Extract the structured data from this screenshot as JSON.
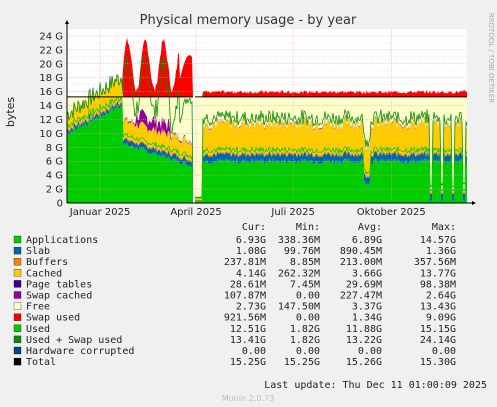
{
  "chart_data": {
    "type": "area",
    "title": "Physical memory usage - by year",
    "ylabel": "bytes",
    "ylim": [
      0,
      25
    ],
    "y_unit": "G",
    "y_ticks": [
      "0",
      "2 G",
      "4 G",
      "6 G",
      "8 G",
      "10 G",
      "12 G",
      "14 G",
      "16 G",
      "18 G",
      "20 G",
      "22 G",
      "24 G"
    ],
    "x_ticks": [
      "Januar 2025",
      "April 2025",
      "Juli 2025",
      "Oktober 2025"
    ],
    "x_range": [
      "2024-12-01",
      "2025-12-11"
    ],
    "x_tick_dates": [
      "2025-01-01",
      "2025-04-01",
      "2025-07-01",
      "2025-10-01"
    ],
    "grid": true,
    "side_text": "RRDTOOL / TOBI OETIKER",
    "footer": "Munin 2.0.73",
    "last_update": "Last update: Thu Dec 11 01:00:09 2025",
    "legend_headers": [
      "Cur:",
      "Min:",
      "Avg:",
      "Max:"
    ],
    "colors": {
      "Applications": "#00cc00",
      "Slab": "#0066b3",
      "Buttons": "#ff8000",
      "Cached": "#ffcc00",
      "Page tables": "#330099",
      "Swap cached": "#990099",
      "Free": "#ffffcc",
      "Swap used": "#ff0000",
      "Used": "#00cc00",
      "Used + Swap used": "#008f00",
      "Hardware corrupted": "#00487d",
      "Total": "#000000"
    },
    "legend": [
      {
        "name": "Applications",
        "cur": "6.93G",
        "min": "338.36M",
        "avg": "6.89G",
        "max": "14.57G",
        "color": "#00cc00"
      },
      {
        "name": "Slab",
        "cur": "1.08G",
        "min": "99.76M",
        "avg": "890.45M",
        "max": "1.36G",
        "color": "#0066b3"
      },
      {
        "name": "Buffers",
        "cur": "237.81M",
        "min": "8.85M",
        "avg": "213.00M",
        "max": "357.56M",
        "color": "#ff8000"
      },
      {
        "name": "Cached",
        "cur": "4.14G",
        "min": "262.32M",
        "avg": "3.66G",
        "max": "13.77G",
        "color": "#ffcc00"
      },
      {
        "name": "Page tables",
        "cur": "28.61M",
        "min": "7.45M",
        "avg": "29.69M",
        "max": "98.38M",
        "color": "#330099"
      },
      {
        "name": "Swap cached",
        "cur": "107.87M",
        "min": "0.00",
        "avg": "227.47M",
        "max": "2.64G",
        "color": "#990099"
      },
      {
        "name": "Free",
        "cur": "2.73G",
        "min": "147.50M",
        "avg": "3.37G",
        "max": "13.43G",
        "color": "#ffffcc"
      },
      {
        "name": "Swap used",
        "cur": "921.56M",
        "min": "0.00",
        "avg": "1.34G",
        "max": "9.09G",
        "color": "#ff0000"
      },
      {
        "name": "Used",
        "cur": "12.51G",
        "min": "1.82G",
        "avg": "11.88G",
        "max": "15.15G",
        "color": "#00cc00"
      },
      {
        "name": "Used + Swap used",
        "cur": "13.41G",
        "min": "1.82G",
        "avg": "13.22G",
        "max": "24.14G",
        "color": "#008f00"
      },
      {
        "name": "Hardware corrupted",
        "cur": "0.00",
        "min": "0.00",
        "avg": "0.00",
        "max": "0.00",
        "color": "#00487d"
      },
      {
        "name": "Total",
        "cur": "15.25G",
        "min": "15.25G",
        "avg": "15.26G",
        "max": "15.30G",
        "color": "#000000"
      }
    ]
  }
}
